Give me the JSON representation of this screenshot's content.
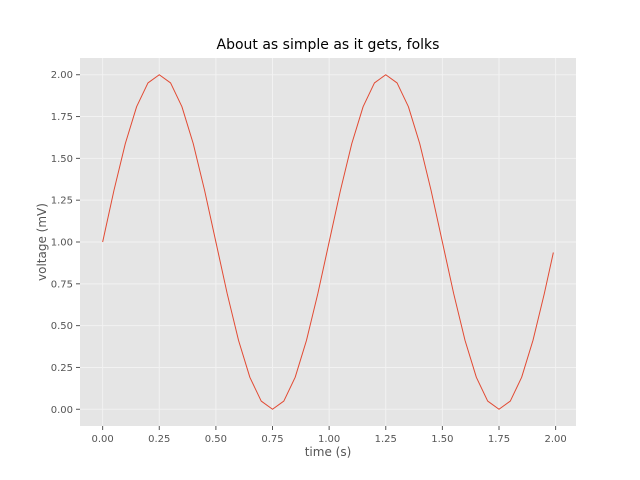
{
  "chart_data": {
    "type": "line",
    "title": "About as simple as it gets, folks",
    "xlabel": "time (s)",
    "ylabel": "voltage (mV)",
    "xlim": [
      -0.1,
      2.09
    ],
    "ylim": [
      -0.1,
      2.1
    ],
    "x_ticks": [
      0.0,
      0.25,
      0.5,
      0.75,
      1.0,
      1.25,
      1.5,
      1.75,
      2.0
    ],
    "x_tick_labels": [
      "0.00",
      "0.25",
      "0.50",
      "0.75",
      "1.00",
      "1.25",
      "1.50",
      "1.75",
      "2.00"
    ],
    "y_ticks": [
      0.0,
      0.25,
      0.5,
      0.75,
      1.0,
      1.25,
      1.5,
      1.75,
      2.0
    ],
    "y_tick_labels": [
      "0.00",
      "0.25",
      "0.50",
      "0.75",
      "1.00",
      "1.25",
      "1.50",
      "1.75",
      "2.00"
    ],
    "grid": true,
    "series": [
      {
        "color": "#E24A33",
        "x": [
          0.0,
          0.05,
          0.1,
          0.15,
          0.2,
          0.25,
          0.3,
          0.35,
          0.4,
          0.45,
          0.5,
          0.55,
          0.6,
          0.65,
          0.7,
          0.75,
          0.8,
          0.85,
          0.9,
          0.95,
          1.0,
          1.05,
          1.1,
          1.15,
          1.2,
          1.25,
          1.3,
          1.35,
          1.4,
          1.45,
          1.5,
          1.55,
          1.6,
          1.65,
          1.7,
          1.75,
          1.8,
          1.85,
          1.9,
          1.95,
          1.99
        ],
        "y": [
          1.0,
          1.309,
          1.588,
          1.809,
          1.951,
          2.0,
          1.951,
          1.809,
          1.588,
          1.309,
          1.0,
          0.691,
          0.412,
          0.191,
          0.049,
          0.0,
          0.049,
          0.191,
          0.412,
          0.691,
          1.0,
          1.309,
          1.588,
          1.809,
          1.951,
          2.0,
          1.951,
          1.809,
          1.588,
          1.309,
          1.0,
          0.691,
          0.412,
          0.191,
          0.049,
          0.0,
          0.049,
          0.191,
          0.412,
          0.691,
          0.937
        ]
      }
    ]
  },
  "colors": {
    "plot_background": "#E5E5E5",
    "grid": "#F2F2F2",
    "line": "#E24A33",
    "text": "#555555"
  }
}
